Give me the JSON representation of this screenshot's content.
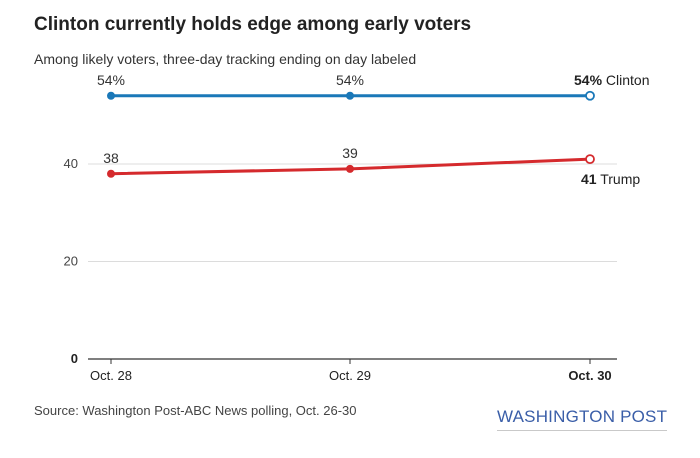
{
  "chart_data": {
    "type": "line",
    "title": "Clinton currently holds edge among early voters",
    "subtitle": "Among likely voters, three-day tracking ending on day labeled",
    "categories": [
      "Oct. 28",
      "Oct. 29",
      "Oct. 30"
    ],
    "ylim": [
      0,
      60
    ],
    "yticks": [
      0,
      20,
      40
    ],
    "series": [
      {
        "name": "Clinton",
        "values": [
          54,
          54,
          54
        ],
        "labels": [
          "54%",
          "54%",
          "54%"
        ],
        "color": "#1a78b8"
      },
      {
        "name": "Trump",
        "values": [
          38,
          39,
          41
        ],
        "labels": [
          "38",
          "39",
          "41"
        ],
        "color": "#d52a2d"
      }
    ],
    "source": "Source: Washington Post-ABC News polling, Oct. 26-30",
    "logo": "WASHINGTON POST"
  }
}
